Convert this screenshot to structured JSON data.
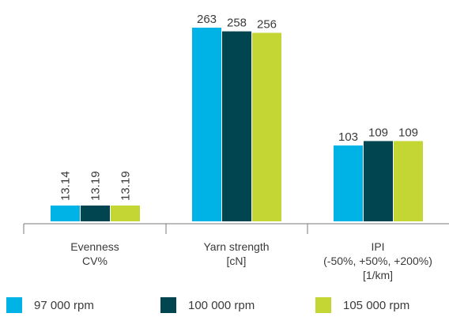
{
  "chart_data": {
    "type": "bar",
    "categories": [
      {
        "lines": [
          "Evenness",
          "CV%"
        ]
      },
      {
        "lines": [
          "Yarn strength",
          "[cN]"
        ]
      },
      {
        "lines": [
          "IPI",
          "(-50%, +50%, +200%)",
          "[1/km]"
        ]
      }
    ],
    "series": [
      {
        "name": "97 000 rpm",
        "color": "#00b3e6",
        "values": [
          13.14,
          263,
          103
        ],
        "labels": [
          "13.14",
          "263",
          "103"
        ]
      },
      {
        "name": "100 000 rpm",
        "color": "#00454f",
        "values": [
          13.19,
          258,
          109
        ],
        "labels": [
          "13.19",
          "258",
          "109"
        ]
      },
      {
        "name": "105 000 rpm",
        "color": "#c3d633",
        "values": [
          13.19,
          256,
          109
        ],
        "labels": [
          "13.19",
          "256",
          "109"
        ]
      }
    ],
    "label_rotation": [
      "vertical",
      "horizontal",
      "horizontal"
    ],
    "title": "",
    "xlabel": "",
    "ylabel": "",
    "grid": false,
    "legend": "bottom"
  }
}
